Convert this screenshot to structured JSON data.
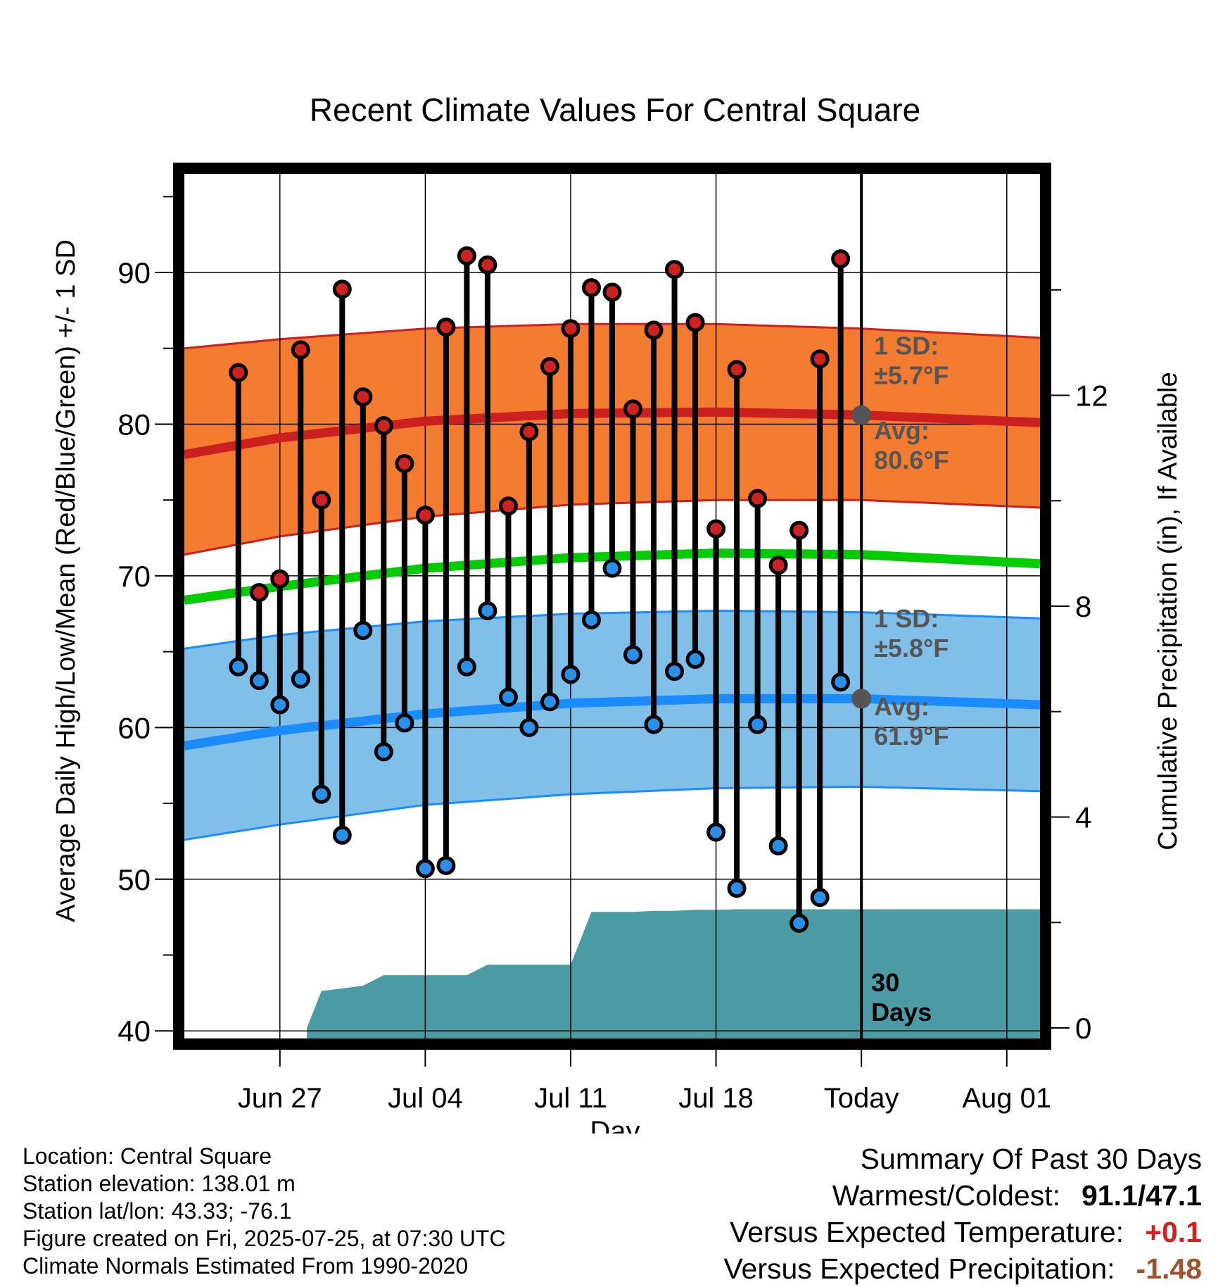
{
  "chart_data": {
    "type": "line",
    "title": "Recent Climate Values For Central Square",
    "xlabel": "Day",
    "ylabel": "Average Daily High/Low/Mean (Red/Blue/Green) +/- 1 SD",
    "y2label": "Cumulative Precipitation (in), If Available",
    "ylim": [
      39.5,
      96.5
    ],
    "y2lim": [
      -0.2,
      16.2
    ],
    "yticks": [
      40,
      50,
      60,
      70,
      80,
      90
    ],
    "y2ticks": [
      0,
      4,
      8,
      12
    ],
    "xlim": [
      -4.6,
      36.6
    ],
    "xticks": [
      {
        "x": 0,
        "label": "Jun 27"
      },
      {
        "x": 7,
        "label": "Jul 04"
      },
      {
        "x": 14,
        "label": "Jul 11"
      },
      {
        "x": 21,
        "label": "Jul 18"
      },
      {
        "x": 28,
        "label": "Today"
      },
      {
        "x": 35,
        "label": "Aug 01"
      }
    ],
    "today_x": 28,
    "grid": true,
    "days": [
      -2,
      -1,
      0,
      1,
      2,
      3,
      4,
      5,
      6,
      7,
      8,
      9,
      10,
      11,
      12,
      13,
      14,
      15,
      16,
      17,
      18,
      19,
      20,
      21,
      22,
      23,
      24,
      25,
      26,
      27
    ],
    "highs": [
      83.4,
      68.9,
      69.8,
      84.9,
      75.0,
      88.9,
      81.8,
      79.9,
      77.4,
      74.0,
      86.4,
      91.1,
      90.5,
      74.6,
      79.5,
      83.8,
      86.3,
      89.0,
      88.7,
      81.0,
      86.2,
      90.2,
      86.7,
      73.1,
      83.6,
      75.1,
      70.7,
      73.0,
      84.3,
      90.9
    ],
    "lows": [
      64.0,
      63.1,
      61.5,
      63.2,
      55.6,
      52.9,
      66.4,
      58.4,
      60.3,
      50.7,
      50.9,
      64.0,
      67.7,
      62.0,
      60.0,
      61.7,
      63.5,
      67.1,
      70.5,
      64.8,
      60.2,
      63.7,
      64.5,
      53.1,
      49.4,
      60.2,
      52.2,
      47.1,
      48.8,
      63.0
    ],
    "normals": {
      "x": [
        -4.6,
        0,
        7,
        14,
        21,
        28,
        36.6
      ],
      "avg_high": [
        78.0,
        79.1,
        80.2,
        80.7,
        80.8,
        80.6,
        80.1
      ],
      "high_upper": [
        85.0,
        85.6,
        86.3,
        86.6,
        86.6,
        86.3,
        85.7
      ],
      "high_lower": [
        71.4,
        72.6,
        73.9,
        74.7,
        75.0,
        75.0,
        74.5
      ],
      "avg_mean": [
        68.4,
        69.3,
        70.5,
        71.2,
        71.5,
        71.4,
        70.8
      ],
      "avg_low": [
        58.8,
        59.8,
        60.9,
        61.6,
        61.9,
        61.9,
        61.5
      ],
      "low_upper": [
        65.2,
        66.1,
        67.0,
        67.5,
        67.7,
        67.6,
        67.2
      ],
      "low_lower": [
        52.6,
        53.6,
        54.9,
        55.6,
        56.0,
        56.1,
        55.8
      ]
    },
    "precipitation": {
      "x": [
        1.3,
        2.0,
        3.0,
        4.0,
        5.0,
        6.0,
        7.0,
        8.0,
        9.0,
        10.0,
        11.0,
        12.0,
        13.0,
        14.0,
        15.0,
        16.0,
        17.0,
        18.0,
        19.0,
        20.0,
        21.0,
        22.0,
        27.0,
        28.0,
        36.6
      ],
      "cum": [
        0,
        0.7,
        0.75,
        0.8,
        1.0,
        1.0,
        1.0,
        1.0,
        1.0,
        1.2,
        1.2,
        1.2,
        1.2,
        1.2,
        2.2,
        2.2,
        2.2,
        2.22,
        2.22,
        2.24,
        2.24,
        2.25,
        2.25,
        2.25,
        2.25
      ]
    },
    "annotations": {
      "high_sd": [
        "1 SD:",
        "±5.7°F"
      ],
      "high_avg": [
        "Avg:",
        "80.6°F"
      ],
      "low_sd": [
        "1 SD:",
        "±5.8°F"
      ],
      "low_avg": [
        "Avg:",
        "61.9°F"
      ],
      "period": [
        "30",
        "Days"
      ]
    },
    "today_marker": {
      "avg_high": 80.6,
      "avg_low": 61.9
    },
    "colors": {
      "high_band": "#f47c30",
      "high_line": "#cc1f1f",
      "low_band": "#80c0e8",
      "low_line": "#1a8cff",
      "mean_line": "#00cc00",
      "precip": "#4a9ba3",
      "high_dot": "#cc2222",
      "low_dot": "#2a8fe8",
      "annotation": "#555555",
      "today_dot": "#555555"
    }
  },
  "footer": {
    "location": "Location: Central Square",
    "elevation": "Station elevation: 138.01 m",
    "latlon": "Station lat/lon: 43.33; -76.1",
    "created": "Figure created on Fri, 2025-07-25, at 07:30 UTC",
    "normals": "Climate Normals Estimated From 1990-2020"
  },
  "summary": {
    "title": "Summary Of Past 30 Days",
    "warmest_label": "Warmest/Coldest:",
    "warmest_value": "91.1/47.1",
    "temp_label": "Versus Expected Temperature:",
    "temp_value": "+0.1",
    "temp_color": "#cc2222",
    "precip_label": "Versus Expected Precipitation:",
    "precip_value": "-1.48",
    "precip_color": "#a0522d"
  }
}
